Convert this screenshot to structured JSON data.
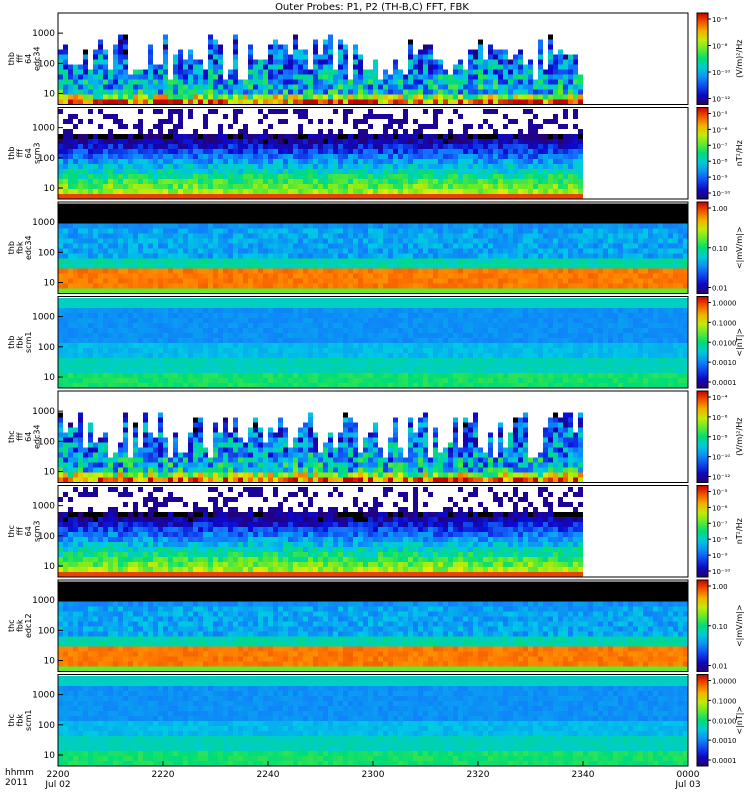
{
  "title": "Outer Probes: P1, P2 (TH-B,C) FFT, FBK",
  "time_axis": {
    "row_label_1": "hhmm",
    "row_label_2": "2011",
    "ticks": [
      {
        "t": 0,
        "label": "2200",
        "sub": "Jul 02"
      },
      {
        "t": 20,
        "label": "2220",
        "sub": ""
      },
      {
        "t": 40,
        "label": "2240",
        "sub": ""
      },
      {
        "t": 60,
        "label": "2300",
        "sub": ""
      },
      {
        "t": 80,
        "label": "2320",
        "sub": ""
      },
      {
        "t": 100,
        "label": "2340",
        "sub": ""
      },
      {
        "t": 120,
        "label": "0000",
        "sub": "Jul 03"
      }
    ]
  },
  "chart_data": [
    {
      "type": "heatmap",
      "kind": "fft",
      "ylabel_lines": [
        "thb",
        "fff",
        "64",
        "edc34"
      ],
      "yticks": [
        "1000",
        "100",
        "10"
      ],
      "colorbar_label": "(V/m)²/Hz",
      "colorbar_ticks": [
        "10⁻⁶",
        "10⁻⁸",
        "10⁻¹⁰",
        "10⁻¹²"
      ],
      "data_end_fraction": 0.83
    },
    {
      "type": "heatmap",
      "kind": "scm",
      "ylabel_lines": [
        "thb",
        "fff",
        "64",
        "scm3"
      ],
      "yticks": [
        "1000",
        "100",
        "10"
      ],
      "colorbar_label": "nT²/Hz",
      "colorbar_ticks": [
        "10⁻⁵",
        "10⁻⁶",
        "10⁻⁷",
        "10⁻⁸",
        "10⁻⁹",
        "10⁻¹⁰"
      ],
      "data_end_fraction": 0.83
    },
    {
      "type": "heatmap",
      "kind": "fbk_e",
      "ylabel_lines": [
        "thb",
        "fbk",
        "edc34"
      ],
      "yticks": [
        "1000",
        "100",
        "10"
      ],
      "colorbar_label": "<|mV/m|>",
      "colorbar_ticks": [
        "1.00",
        "0.10",
        "0.01"
      ],
      "data_end_fraction": 1.0
    },
    {
      "type": "heatmap",
      "kind": "fbk_b",
      "ylabel_lines": [
        "thb",
        "fbk",
        "scm1"
      ],
      "yticks": [
        "1000",
        "100",
        "10"
      ],
      "colorbar_label": "<|nT|>",
      "colorbar_ticks": [
        "1.0000",
        "0.1000",
        "0.0100",
        "0.0010",
        "0.0001"
      ],
      "data_end_fraction": 1.0
    },
    {
      "type": "heatmap",
      "kind": "fft",
      "ylabel_lines": [
        "thc",
        "fff",
        "64",
        "edc34"
      ],
      "yticks": [
        "1000",
        "100",
        "10"
      ],
      "colorbar_label": "(V/m)²/Hz",
      "colorbar_ticks": [
        "10⁻⁴",
        "10⁻⁶",
        "10⁻⁸",
        "10⁻¹⁰",
        "10⁻¹²"
      ],
      "data_end_fraction": 0.83
    },
    {
      "type": "heatmap",
      "kind": "scm",
      "ylabel_lines": [
        "thc",
        "fff",
        "64",
        "scm3"
      ],
      "yticks": [
        "1000",
        "100",
        "10"
      ],
      "colorbar_label": "nT²/Hz",
      "colorbar_ticks": [
        "10⁻⁵",
        "10⁻⁶",
        "10⁻⁷",
        "10⁻⁸",
        "10⁻⁹",
        "10⁻¹⁰"
      ],
      "data_end_fraction": 0.83
    },
    {
      "type": "heatmap",
      "kind": "fbk_e",
      "ylabel_lines": [
        "thc",
        "fbk",
        "edc12"
      ],
      "yticks": [
        "1000",
        "100",
        "10"
      ],
      "colorbar_label": "<|mV/m|>",
      "colorbar_ticks": [
        "1.00",
        "0.10",
        "0.01"
      ],
      "data_end_fraction": 1.0
    },
    {
      "type": "heatmap",
      "kind": "fbk_b",
      "ylabel_lines": [
        "thc",
        "fbk",
        "scm1"
      ],
      "yticks": [
        "1000",
        "100",
        "10"
      ],
      "colorbar_label": "<|nT|>",
      "colorbar_ticks": [
        "1.0000",
        "0.1000",
        "0.0100",
        "0.0010",
        "0.0001"
      ],
      "data_end_fraction": 1.0
    }
  ]
}
